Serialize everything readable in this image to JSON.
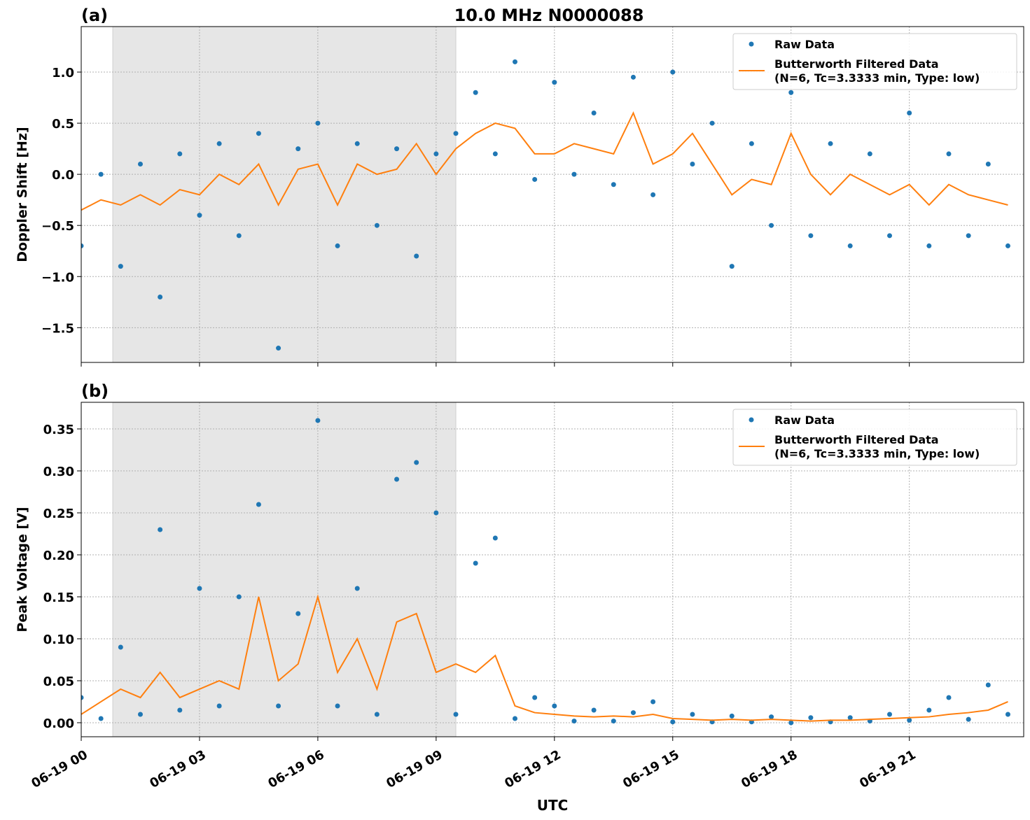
{
  "chart_data": [
    {
      "type": "line",
      "panel": "(a)",
      "title": "10.0 MHz N0000088",
      "ylabel": "Doppler Shift [Hz]",
      "x": [
        0,
        0.5,
        1,
        1.5,
        2,
        2.5,
        3,
        3.5,
        4,
        4.5,
        5,
        5.5,
        6,
        6.5,
        7,
        7.5,
        8,
        8.5,
        9,
        9.5,
        10,
        10.5,
        11,
        11.5,
        12,
        12.5,
        13,
        13.5,
        14,
        14.5,
        15,
        15.5,
        16,
        16.5,
        17,
        17.5,
        18,
        18.5,
        19,
        19.5,
        20,
        20.5,
        21,
        21.5,
        22,
        22.5,
        23,
        23.5
      ],
      "xlim": [
        0,
        23.9
      ],
      "ylim": [
        -1.84,
        1.445
      ],
      "yticks": [
        {
          "value": -1.5,
          "label": "−1.5"
        },
        {
          "value": -1.0,
          "label": "−1.0"
        },
        {
          "value": -0.5,
          "label": "−0.5"
        },
        {
          "value": 0,
          "label": "0.0"
        },
        0.5,
        {
          "value": 1.0,
          "label": "1.0"
        }
      ],
      "grid": true,
      "shade": [
        0.8,
        9.5
      ],
      "legend": "upper right",
      "series": [
        {
          "name": "Raw Data",
          "mode": "markers",
          "color": "#1f77b4",
          "values": [
            -0.7,
            0.0,
            -0.9,
            0.1,
            -1.2,
            0.2,
            -0.4,
            0.3,
            -0.6,
            0.4,
            -1.7,
            0.25,
            0.5,
            -0.7,
            0.3,
            -0.5,
            0.25,
            -0.8,
            0.2,
            0.4,
            0.8,
            0.2,
            1.1,
            -0.05,
            0.9,
            0.0,
            0.6,
            -0.1,
            0.95,
            -0.2,
            1.0,
            0.1,
            0.5,
            -0.9,
            0.3,
            -0.5,
            0.8,
            -0.6,
            0.3,
            -0.7,
            0.2,
            -0.6,
            0.6,
            -0.7,
            0.2,
            -0.6,
            0.1,
            -0.7
          ]
        },
        {
          "name": "Butterworth Filtered Data\n(N=6, Tc=3.3333 min, Type: low)",
          "mode": "lines",
          "color": "#ff7f0e",
          "values": [
            -0.35,
            -0.25,
            -0.3,
            -0.2,
            -0.3,
            -0.15,
            -0.2,
            0.0,
            -0.1,
            0.1,
            -0.3,
            0.05,
            0.1,
            -0.3,
            0.1,
            0.0,
            0.05,
            0.3,
            0.0,
            0.25,
            0.4,
            0.5,
            0.45,
            0.2,
            0.2,
            0.3,
            0.25,
            0.2,
            0.6,
            0.1,
            0.2,
            0.4,
            0.1,
            -0.2,
            -0.05,
            -0.1,
            0.4,
            0.0,
            -0.2,
            0.0,
            -0.1,
            -0.2,
            -0.1,
            -0.3,
            -0.1,
            -0.2,
            -0.25,
            -0.3
          ]
        }
      ]
    },
    {
      "type": "line",
      "panel": "(b)",
      "ylabel": "Peak Voltage [V]",
      "xlabel": "UTC",
      "x": [
        0,
        0.5,
        1,
        1.5,
        2,
        2.5,
        3,
        3.5,
        4,
        4.5,
        5,
        5.5,
        6,
        6.5,
        7,
        7.5,
        8,
        8.5,
        9,
        9.5,
        10,
        10.5,
        11,
        11.5,
        12,
        12.5,
        13,
        13.5,
        14,
        14.5,
        15,
        15.5,
        16,
        16.5,
        17,
        17.5,
        18,
        18.5,
        19,
        19.5,
        20,
        20.5,
        21,
        21.5,
        22,
        22.5,
        23,
        23.5
      ],
      "xlim": [
        0,
        23.9
      ],
      "ylim": [
        -0.0167,
        0.3817
      ],
      "xticks": [
        {
          "value": 0,
          "label": "06-19 00"
        },
        {
          "value": 3,
          "label": "06-19 03"
        },
        {
          "value": 6,
          "label": "06-19 06"
        },
        {
          "value": 9,
          "label": "06-19 09"
        },
        {
          "value": 12,
          "label": "06-19 12"
        },
        {
          "value": 15,
          "label": "06-19 15"
        },
        {
          "value": 18,
          "label": "06-19 18"
        },
        {
          "value": 21,
          "label": "06-19 21"
        }
      ],
      "yticks": [
        {
          "value": 0,
          "label": "0.00"
        },
        {
          "value": 0.05,
          "label": "0.05"
        },
        {
          "value": 0.1,
          "label": "0.10"
        },
        {
          "value": 0.15,
          "label": "0.15"
        },
        {
          "value": 0.2,
          "label": "0.20"
        },
        {
          "value": 0.25,
          "label": "0.25"
        },
        {
          "value": 0.3,
          "label": "0.30"
        },
        {
          "value": 0.35,
          "label": "0.35"
        }
      ],
      "grid": true,
      "shade": [
        0.8,
        9.5
      ],
      "legend": "upper right",
      "series": [
        {
          "name": "Raw Data",
          "mode": "markers",
          "color": "#1f77b4",
          "values": [
            0.03,
            0.005,
            0.09,
            0.01,
            0.23,
            0.015,
            0.16,
            0.02,
            0.15,
            0.26,
            0.02,
            0.13,
            0.36,
            0.02,
            0.16,
            0.01,
            0.29,
            0.31,
            0.25,
            0.01,
            0.19,
            0.22,
            0.005,
            0.03,
            0.02,
            0.002,
            0.015,
            0.002,
            0.012,
            0.025,
            0.001,
            0.01,
            0.001,
            0.008,
            0.001,
            0.007,
            0.0,
            0.006,
            0.001,
            0.006,
            0.002,
            0.01,
            0.003,
            0.015,
            0.03,
            0.004,
            0.045,
            0.01
          ]
        },
        {
          "name": "Butterworth Filtered Data\n(N=6, Tc=3.3333 min, Type: low)",
          "mode": "lines",
          "color": "#ff7f0e",
          "values": [
            0.01,
            0.025,
            0.04,
            0.03,
            0.06,
            0.03,
            0.04,
            0.05,
            0.04,
            0.15,
            0.05,
            0.07,
            0.15,
            0.06,
            0.1,
            0.04,
            0.12,
            0.13,
            0.06,
            0.07,
            0.06,
            0.08,
            0.02,
            0.012,
            0.01,
            0.008,
            0.007,
            0.008,
            0.007,
            0.01,
            0.005,
            0.004,
            0.003,
            0.004,
            0.003,
            0.004,
            0.003,
            0.002,
            0.003,
            0.003,
            0.004,
            0.005,
            0.006,
            0.007,
            0.01,
            0.012,
            0.015,
            0.025
          ]
        }
      ]
    }
  ]
}
